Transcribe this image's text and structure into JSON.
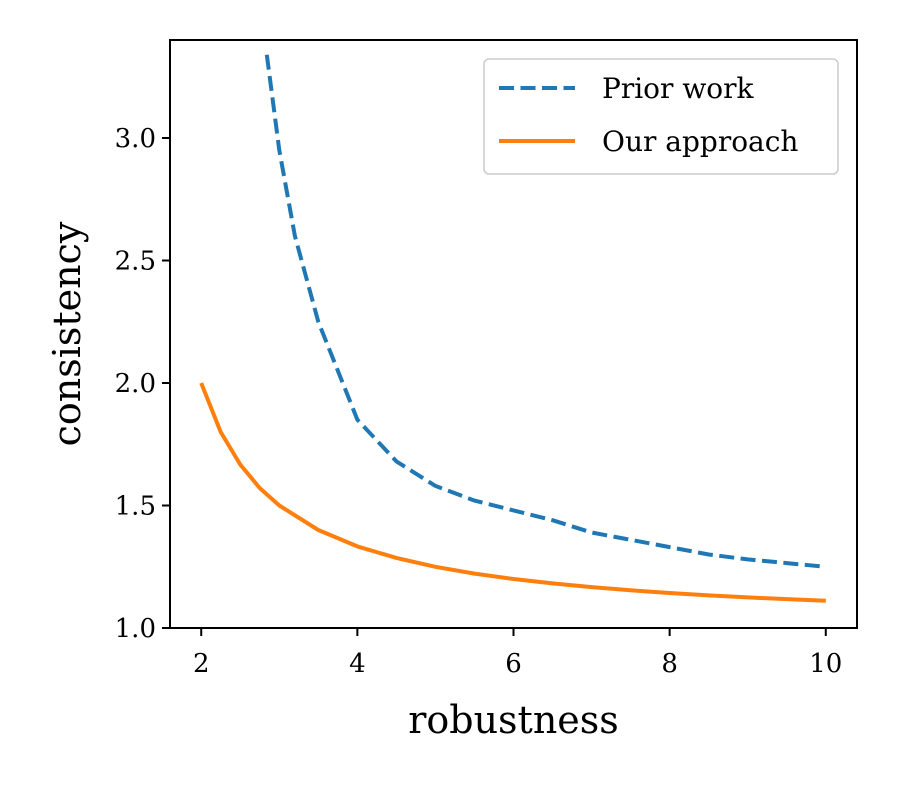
{
  "chart_data": {
    "type": "line",
    "xlabel": "robustness",
    "ylabel": "consistency",
    "xlim": [
      1.6,
      10.4
    ],
    "ylim": [
      1.0,
      3.4
    ],
    "xticks": [
      2,
      4,
      6,
      8,
      10
    ],
    "xtick_labels": [
      "2",
      "4",
      "6",
      "8",
      "10"
    ],
    "yticks": [
      1.0,
      1.5,
      2.0,
      2.5,
      3.0
    ],
    "ytick_labels": [
      "1.0",
      "1.5",
      "2.0",
      "2.5",
      "3.0"
    ],
    "grid": false,
    "legend": {
      "position": "top-right"
    },
    "series": [
      {
        "name": "Prior work",
        "color": "#1f77b4",
        "dash": "dashed",
        "x": [
          2.84,
          3.0,
          3.2,
          3.5,
          4.0,
          4.5,
          5.0,
          5.5,
          6.0,
          6.5,
          7.0,
          7.5,
          8.0,
          8.5,
          9.0,
          9.5,
          10.0
        ],
        "y": [
          3.34,
          2.95,
          2.6,
          2.25,
          1.85,
          1.68,
          1.58,
          1.52,
          1.48,
          1.44,
          1.39,
          1.36,
          1.33,
          1.3,
          1.28,
          1.265,
          1.25
        ]
      },
      {
        "name": "Our approach",
        "color": "#ff7f0e",
        "dash": "solid",
        "x": [
          2.0,
          2.25,
          2.5,
          2.75,
          3.0,
          3.5,
          4.0,
          4.5,
          5.0,
          5.5,
          6.0,
          6.5,
          7.0,
          7.5,
          8.0,
          8.5,
          9.0,
          9.5,
          10.0
        ],
        "y": [
          2.0,
          1.8,
          1.667,
          1.571,
          1.5,
          1.4,
          1.333,
          1.286,
          1.25,
          1.222,
          1.2,
          1.182,
          1.167,
          1.154,
          1.143,
          1.133,
          1.125,
          1.118,
          1.111
        ]
      }
    ]
  }
}
